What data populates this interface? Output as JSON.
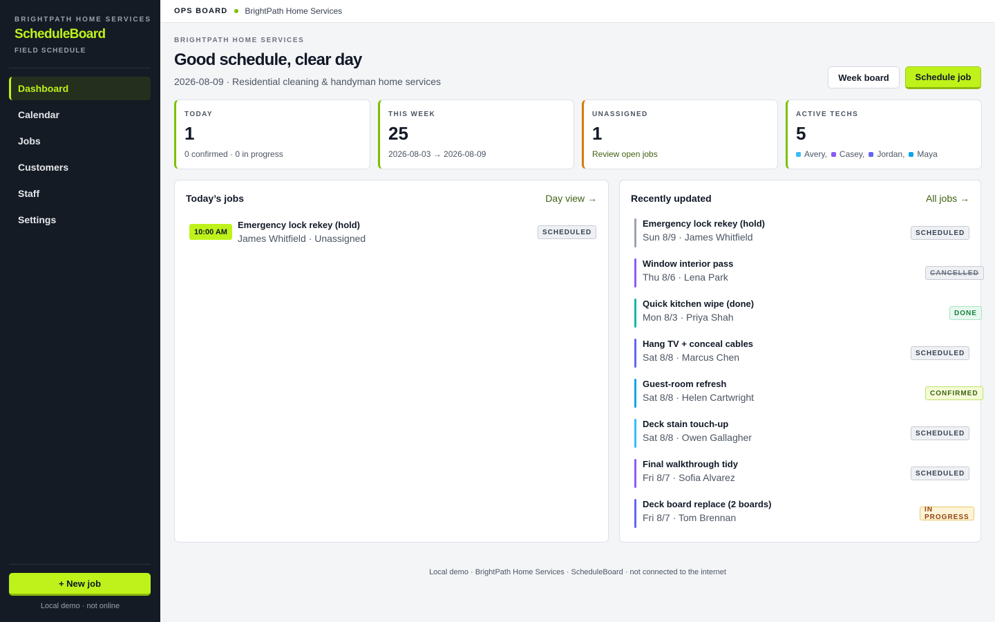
{
  "sidebar": {
    "kicker": "BRIGHTPATH HOME SERVICES",
    "brand": "ScheduleBoard",
    "subtitle": "FIELD SCHEDULE",
    "nav": [
      "Dashboard",
      "Calendar",
      "Jobs",
      "Customers",
      "Staff",
      "Settings"
    ],
    "active_nav": "Dashboard",
    "new_job": "+ New job",
    "footer": "Local demo · not online"
  },
  "topbar": {
    "title": "OPS BOARD",
    "company": "BrightPath Home Services",
    "status_color": "#7cc000"
  },
  "header": {
    "kicker": "BRIGHTPATH HOME SERVICES",
    "title": "Good schedule, clear day",
    "subline": "2026-08-09 · Residential cleaning & handyman home services",
    "week_board": "Week board",
    "schedule_job": "Schedule job"
  },
  "stats": {
    "today": {
      "label": "TODAY",
      "value": "1",
      "note": "0 confirmed · 0 in progress"
    },
    "week": {
      "label": "THIS WEEK",
      "value": "25",
      "note": "2026-08-03 → 2026-08-09"
    },
    "unassigned": {
      "label": "UNASSIGNED",
      "value": "1",
      "link": "Review open jobs"
    },
    "techs": {
      "label": "ACTIVE TECHS",
      "value": "5",
      "list": [
        {
          "name": "Avery,",
          "color": "#38bdf8"
        },
        {
          "name": "Casey,",
          "color": "#8b5cf6"
        },
        {
          "name": "Jordan,",
          "color": "#6366f1"
        },
        {
          "name": "Maya",
          "color": "#0ea5e9"
        }
      ]
    }
  },
  "todays_jobs": {
    "title": "Today’s jobs",
    "link": "Day view →",
    "jobs": [
      {
        "time": "10:00 AM",
        "title": "Emergency lock rekey (hold)",
        "sub": "James Whitfield · Unassigned",
        "status": "SCHEDULED"
      }
    ]
  },
  "recent": {
    "title": "Recently updated",
    "link": "All jobs →",
    "items": [
      {
        "title": "Emergency lock rekey (hold)",
        "sub": "Sun 8/9 · James Whitfield",
        "status": "SCHEDULED",
        "kind": "scheduled",
        "color": "#9ca3af"
      },
      {
        "title": "Window interior pass",
        "sub": "Thu 8/6 · Lena Park",
        "status": "CANCELLED",
        "kind": "cancelled",
        "color": "#8b5cf6"
      },
      {
        "title": "Quick kitchen wipe (done)",
        "sub": "Mon 8/3 · Priya Shah",
        "status": "DONE",
        "kind": "done",
        "color": "#14b8a6"
      },
      {
        "title": "Hang TV + conceal cables",
        "sub": "Sat 8/8 · Marcus Chen",
        "status": "SCHEDULED",
        "kind": "scheduled",
        "color": "#6366f1"
      },
      {
        "title": "Guest-room refresh",
        "sub": "Sat 8/8 · Helen Cartwright",
        "status": "CONFIRMED",
        "kind": "confirmed",
        "color": "#0ea5e9"
      },
      {
        "title": "Deck stain touch-up",
        "sub": "Sat 8/8 · Owen Gallagher",
        "status": "SCHEDULED",
        "kind": "scheduled",
        "color": "#38bdf8"
      },
      {
        "title": "Final walkthrough tidy",
        "sub": "Fri 8/7 · Sofia Alvarez",
        "status": "SCHEDULED",
        "kind": "scheduled",
        "color": "#8b5cf6"
      },
      {
        "title": "Deck board replace (2 boards)",
        "sub": "Fri 8/7 · Tom Brennan",
        "status": "IN PROGRESS",
        "kind": "progress",
        "color": "#6366f1"
      }
    ]
  },
  "footer": "Local demo · BrightPath Home Services · ScheduleBoard · not connected to the internet"
}
